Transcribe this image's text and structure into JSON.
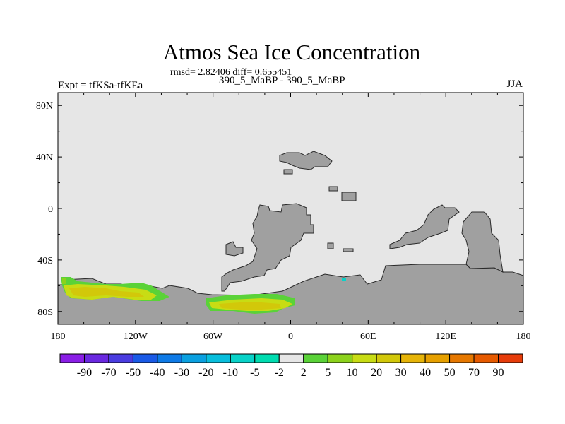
{
  "header": {
    "title": "Atmos Sea Ice Concentration",
    "stats": "rmsd= 2.82406 diff= 0.655451",
    "experiment": "Expt = tfKSa-tfKEa",
    "period": "390_5_MaBP - 390_5_MaBP",
    "season": "JJA"
  },
  "map": {
    "background_color": "#e6e6e6",
    "land_color": "#a0a0a0",
    "lon_ticks": [
      "180",
      "120W",
      "60W",
      "0",
      "60E",
      "120E",
      "180"
    ],
    "lat_ticks": [
      "80N",
      "40N",
      "0",
      "40S",
      "80S"
    ],
    "lon_range": [
      -180,
      180
    ],
    "lat_range": [
      -90,
      90
    ]
  },
  "colorbar": {
    "labels": [
      "-90",
      "-70",
      "-50",
      "-40",
      "-30",
      "-20",
      "-10",
      "-5",
      "-2",
      "2",
      "5",
      "10",
      "20",
      "30",
      "40",
      "50",
      "70",
      "90"
    ],
    "colors": [
      "#8a1ee6",
      "#6a28e0",
      "#4a3ce0",
      "#1a5ae6",
      "#0e7ae6",
      "#0aa0e0",
      "#08bedc",
      "#08d2c8",
      "#00dcb0",
      "#e6e6e6",
      "#5ad238",
      "#8cd21c",
      "#c8dc14",
      "#d2c80a",
      "#e6b408",
      "#e6a000",
      "#e67800",
      "#e65a00",
      "#e63c0a"
    ]
  }
}
